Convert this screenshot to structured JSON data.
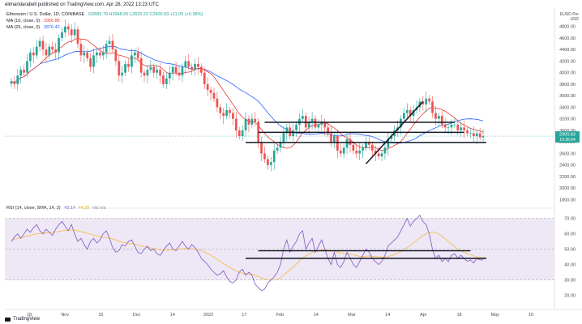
{
  "header": {
    "publish_line": "elimandarabell published on TradingView.com, Apr 28, 2022 13:23 UTC",
    "symbol_line": "Ethereum / U.S. Dollar, 1D, COINBASE",
    "ohlc": "O2889.79  H2948.65  L2820.22  C2900.83  +11.05 (+0.38%)",
    "ma10": {
      "label": "MA (10, close, 0)",
      "value": "2956.88",
      "color": "#e53935"
    },
    "ma25": {
      "label": "MA (25, close, 0)",
      "value": "2876.42",
      "color": "#2962ff"
    },
    "price_unit": "EUSD Per USD",
    "price_unit_line1": "EUSD Per",
    "price_unit_line2": "USD"
  },
  "rsi_legend": {
    "label": "RSI (14, close, SMA, 14, 2)",
    "rsi": "43.14",
    "sma": "44.20",
    "na": "n/a  n/a"
  },
  "price_tag": {
    "value": "2900.83",
    "sub": "10:36:04"
  },
  "brand": "TradingView",
  "colors": {
    "up": "#26a69a",
    "down": "#ef5350",
    "rsi": "#7e57c2",
    "rsi_sma": "#f5c14e",
    "rsi_band": "#ede7f6",
    "ma10": "#e53935",
    "ma25": "#2962ff"
  },
  "chart_data": [
    {
      "type": "candlestick",
      "title": "Ethereum / U.S. Dollar, 1D, COINBASE",
      "y_ticks": [
        1800,
        2000,
        2200,
        2400,
        2600,
        2800,
        3000,
        3200,
        3400,
        3600,
        3800,
        4000,
        4200,
        4400,
        4600,
        4800
      ],
      "ylim": [
        1750,
        4950
      ],
      "x_tick_labels": [
        "18",
        "Nov",
        "15",
        "Dec",
        "14",
        "2022",
        "17",
        "Feb",
        "14",
        "Mar",
        "14",
        "Apr",
        "18",
        "May",
        "16"
      ],
      "close_series": [
        3850,
        3800,
        3950,
        4050,
        4000,
        4200,
        4350,
        4300,
        4450,
        4550,
        4400,
        4300,
        4450,
        4400,
        4350,
        4600,
        4700,
        4800,
        4750,
        4650,
        4750,
        4500,
        4300,
        4350,
        4250,
        4100,
        4300,
        4350,
        4300,
        4350,
        4500,
        4550,
        4400,
        4200,
        3950,
        4000,
        4150,
        4100,
        4300,
        4350,
        4250,
        4000,
        3950,
        4050,
        4100,
        4000,
        4050,
        3950,
        3800,
        3900,
        4000,
        4100,
        4000,
        3950,
        4100,
        4200,
        4100,
        4050,
        4150,
        4100,
        4000,
        3800,
        3700,
        3650,
        3550,
        3400,
        3300,
        3250,
        3350,
        3300,
        3200,
        3000,
        2900,
        3000,
        3200,
        3100,
        3200,
        3150,
        2800,
        2600,
        2500,
        2400,
        2450,
        2650,
        2700,
        2800,
        2950,
        3050,
        2900,
        3000,
        3100,
        3200,
        3250,
        3050,
        3150,
        3200,
        3050,
        3100,
        3150,
        3050,
        2950,
        2800,
        2900,
        2650,
        2600,
        2700,
        2850,
        2750,
        2650,
        2600,
        2650,
        2700,
        2800,
        2750,
        2650,
        2600,
        2550,
        2600,
        2700,
        2850,
        2900,
        3000,
        3050,
        3200,
        3300,
        3350,
        3250,
        3350,
        3400,
        3500,
        3450,
        3550,
        3500,
        3300,
        3200,
        3250,
        3100,
        3050,
        3050,
        3100,
        3100,
        3000,
        3050,
        3000,
        2950,
        2950,
        2900,
        2950,
        2880,
        2900
      ],
      "lines": [
        {
          "name": "resistance",
          "points": [
            [
              80,
              3140
            ],
            [
              140,
              3140
            ]
          ]
        },
        {
          "name": "pivot",
          "points": [
            [
              78,
              2965
            ],
            [
              143,
              2965
            ]
          ]
        },
        {
          "name": "support",
          "points": [
            [
              74,
              2790
            ],
            [
              150,
              2790
            ]
          ]
        },
        {
          "name": "trend",
          "points": [
            [
              112,
              2420
            ],
            [
              130,
              3500
            ]
          ]
        }
      ]
    },
    {
      "type": "line",
      "title": "RSI (14, close, SMA, 14, 2)",
      "y_ticks": [
        20,
        30,
        40,
        50,
        60,
        70
      ],
      "ylim": [
        15,
        73
      ],
      "bands": [
        30,
        50,
        70
      ],
      "rsi_series": [
        55,
        58,
        60,
        57,
        60,
        63,
        61,
        64,
        66,
        62,
        60,
        63,
        61,
        59,
        63,
        66,
        68,
        65,
        62,
        66,
        60,
        55,
        57,
        53,
        50,
        55,
        57,
        54,
        56,
        60,
        62,
        57,
        51,
        48,
        49,
        53,
        52,
        55,
        56,
        52,
        48,
        47,
        50,
        52,
        49,
        50,
        47,
        46,
        49,
        52,
        54,
        50,
        49,
        52,
        55,
        52,
        50,
        53,
        51,
        48,
        44,
        42,
        40,
        37,
        35,
        33,
        34,
        36,
        32,
        29,
        28,
        30,
        35,
        37,
        33,
        35,
        33,
        27,
        25,
        23,
        24,
        28,
        30,
        32,
        35,
        40,
        50,
        56,
        48,
        52,
        55,
        60,
        62,
        50,
        54,
        57,
        48,
        52,
        56,
        50,
        44,
        40,
        48,
        40,
        38,
        42,
        48,
        44,
        40,
        38,
        42,
        46,
        50,
        48,
        44,
        42,
        40,
        42,
        46,
        52,
        54,
        56,
        58,
        62,
        66,
        70,
        65,
        68,
        70,
        72,
        68,
        66,
        60,
        50,
        44,
        46,
        42,
        44,
        42,
        46,
        47,
        44,
        46,
        44,
        42,
        43,
        41,
        44,
        43,
        43
      ],
      "sma_series": [
        56,
        56.5,
        57,
        57.5,
        58,
        58.5,
        59,
        59.5,
        60,
        60.2,
        60.4,
        60.6,
        60.8,
        61,
        61.2,
        61.5,
        62,
        62.2,
        62.3,
        62.5,
        62.3,
        62,
        61.5,
        61,
        60.3,
        59.8,
        59.2,
        58.6,
        58.2,
        57.8,
        57.6,
        57.2,
        56.7,
        56,
        55.2,
        54.6,
        54.2,
        53.8,
        53.6,
        53.2,
        52.6,
        52,
        51.6,
        51.2,
        50.8,
        50.4,
        50,
        49.6,
        49.4,
        49.4,
        49.6,
        49.8,
        49.9,
        50,
        50.2,
        50.4,
        50.3,
        50.2,
        50,
        49.6,
        49,
        48.2,
        47.2,
        46,
        44.8,
        43.4,
        42,
        40.6,
        39.4,
        38.2,
        37,
        35.8,
        35,
        34.4,
        34,
        33.8,
        33.6,
        33,
        32.2,
        31.4,
        30.6,
        30,
        29.8,
        30,
        30.4,
        31.4,
        33,
        34.8,
        36.4,
        38.2,
        40.2,
        42.4,
        44.4,
        45.6,
        46.8,
        48,
        48.4,
        49,
        49.6,
        49.8,
        49.4,
        48.8,
        48.6,
        48.2,
        47.6,
        47.2,
        47,
        46.8,
        46.4,
        45.8,
        45.4,
        45.2,
        45.4,
        45.6,
        45.4,
        45.2,
        45,
        44.8,
        44.8,
        45.2,
        45.8,
        46.6,
        47.4,
        48.4,
        49.6,
        51,
        52.6,
        54.2,
        55.8,
        57.4,
        58.8,
        60,
        60.8,
        61.2,
        60.8,
        59.8,
        58.4,
        56.8,
        55,
        53.2,
        51.6,
        50.2,
        49,
        48,
        47.2,
        46.4,
        45.6,
        45,
        44.6,
        44.4,
        44.2
      ],
      "lines": [
        {
          "name": "rsi-resistance",
          "points": [
            [
              78,
              49
            ],
            [
              145,
              49
            ]
          ]
        },
        {
          "name": "rsi-support",
          "points": [
            [
              74,
              44
            ],
            [
              150,
              44
            ]
          ]
        }
      ]
    }
  ]
}
